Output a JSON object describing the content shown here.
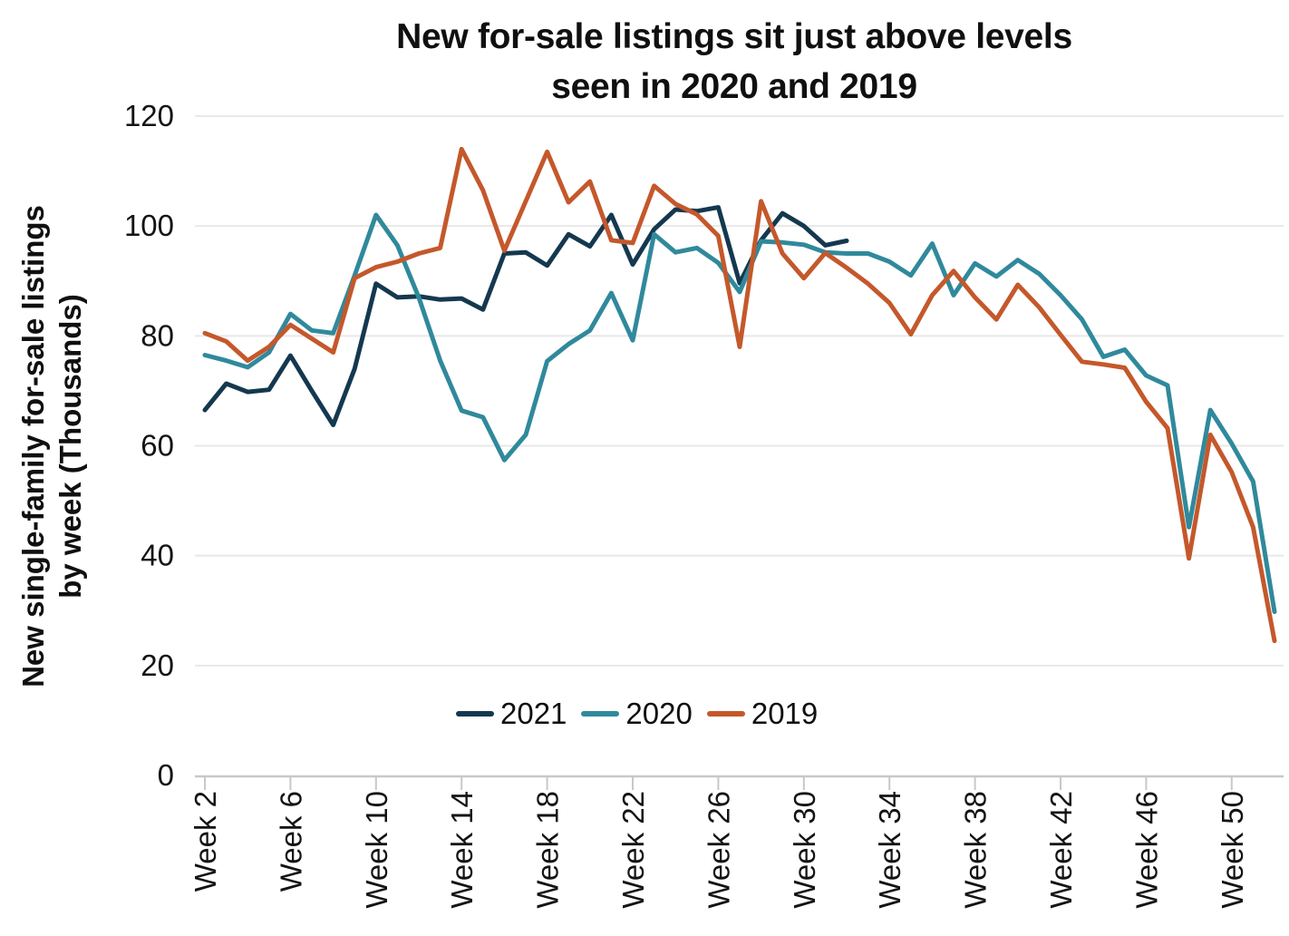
{
  "header": {
    "title_line1": "New for-sale listings sit just above levels",
    "title_line2": "seen in 2020 and 2019"
  },
  "y_axis": {
    "label_line1": "New single-family for-sale listings",
    "label_line2": "by week (Thousands)"
  },
  "colors": {
    "background": "#ffffff",
    "grid": "#e8e8e8",
    "axis": "#c8c8c8",
    "text": "#141414"
  },
  "chart_data": {
    "type": "line",
    "title": "New for-sale listings sit just above levels seen in 2020 and 2019",
    "xlabel": "",
    "ylabel": "New single-family for-sale listings by week (Thousands)",
    "ylim": [
      0,
      120
    ],
    "y_ticks": [
      0,
      20,
      40,
      60,
      80,
      100,
      120
    ],
    "x_tick_weeks": [
      2,
      6,
      10,
      14,
      18,
      22,
      26,
      30,
      34,
      38,
      42,
      46,
      50
    ],
    "x_tick_labels": [
      "Week 2",
      "Week 6",
      "Week 10",
      "Week 14",
      "Week 18",
      "Week 22",
      "Week 26",
      "Week 30",
      "Week 34",
      "Week 38",
      "Week 42",
      "Week 46",
      "Week 50"
    ],
    "grid": "horizontal",
    "legend_position": "bottom-center-inside",
    "series": [
      {
        "name": "2021",
        "color": "#14384f",
        "start_week": 2,
        "values": [
          66.5,
          71.3,
          69.8,
          70.2,
          76.4,
          70,
          63.8,
          74,
          89.5,
          87,
          87.2,
          86.6,
          86.8,
          84.8,
          95,
          95.2,
          92.8,
          98.5,
          96.3,
          102,
          93,
          99.4,
          103,
          102.7,
          103.4,
          89.6,
          97.4,
          102.3,
          100,
          96.5,
          97.3
        ]
      },
      {
        "name": "2020",
        "color": "#30899c",
        "start_week": 2,
        "values": [
          76.5,
          75.5,
          74.3,
          77,
          84,
          81,
          80.5,
          91,
          102,
          96.5,
          87,
          75.5,
          66.4,
          65.2,
          57.4,
          62,
          75.4,
          78.5,
          81,
          87.8,
          79.2,
          98.5,
          95.2,
          96,
          93.3,
          88,
          97.2,
          97,
          96.6,
          95.2,
          95,
          95,
          93.5,
          91,
          96.8,
          87.4,
          93.2,
          90.8,
          93.8,
          91.3,
          87.4,
          83,
          76.2,
          77.5,
          72.8,
          71,
          45.2,
          66.5,
          60.4,
          53.5,
          29.8
        ]
      },
      {
        "name": "2019",
        "color": "#c4582b",
        "start_week": 2,
        "values": [
          80.5,
          79,
          75.5,
          78,
          82,
          79.5,
          77,
          90.5,
          92.5,
          93.5,
          95,
          96,
          114,
          106.5,
          95.5,
          104.5,
          113.5,
          104.3,
          108.1,
          97.4,
          96.9,
          107.3,
          104,
          102.1,
          98.2,
          78,
          104.5,
          95,
          90.5,
          95.1,
          92.4,
          89.5,
          86,
          80.3,
          87.4,
          91.8,
          87,
          83,
          89.3,
          85.2,
          80.2,
          75.3,
          74.8,
          74.2,
          68,
          63.2,
          39.5,
          62,
          55.2,
          45.2,
          24.5
        ]
      }
    ]
  }
}
